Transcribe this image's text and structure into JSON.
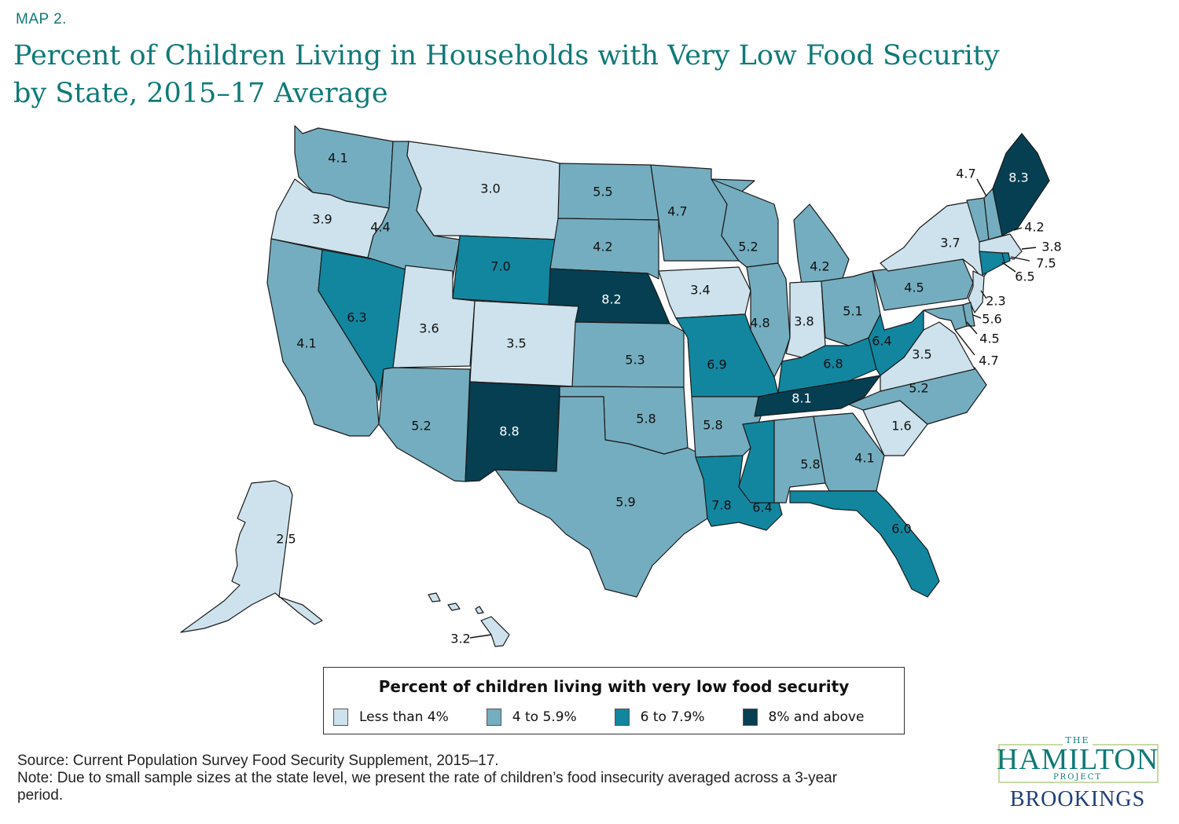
{
  "header": {
    "kicker": "MAP 2.",
    "title": "Percent of Children Living in Households with Very Low Food Security by State, 2015–17 Average"
  },
  "colors": {
    "bin_lt4": "#cde2ec",
    "bin_4_59": "#74adbf",
    "bin_6_79": "#12869f",
    "bin_8plus": "#063f52",
    "title_teal": "#0f7a78"
  },
  "chart_data": {
    "type": "choropleth",
    "title": "Percent of Children Living in Households with Very Low Food Security by State, 2015–17 Average",
    "unit": "percent",
    "legend": {
      "title": "Percent of children living with very low food security",
      "placement": "bottom-center",
      "bins": [
        {
          "label": "Less than 4%",
          "min": null,
          "max": 4.0,
          "color": "#cde2ec"
        },
        {
          "label": "4 to 5.9%",
          "min": 4.0,
          "max": 5.9,
          "color": "#74adbf"
        },
        {
          "label": "6 to 7.9%",
          "min": 6.0,
          "max": 7.9,
          "color": "#12869f"
        },
        {
          "label": "8% and above",
          "min": 8.0,
          "max": null,
          "color": "#063f52"
        }
      ]
    },
    "states": [
      {
        "state": "WA",
        "value": 4.1
      },
      {
        "state": "OR",
        "value": 3.9
      },
      {
        "state": "CA",
        "value": 4.1
      },
      {
        "state": "ID",
        "value": 4.4
      },
      {
        "state": "NV",
        "value": 6.3
      },
      {
        "state": "MT",
        "value": 3.0
      },
      {
        "state": "WY",
        "value": 7.0
      },
      {
        "state": "UT",
        "value": 3.6
      },
      {
        "state": "CO",
        "value": 3.5
      },
      {
        "state": "AZ",
        "value": 5.2
      },
      {
        "state": "NM",
        "value": 8.8
      },
      {
        "state": "ND",
        "value": 5.5
      },
      {
        "state": "SD",
        "value": 4.2
      },
      {
        "state": "NE",
        "value": 8.2
      },
      {
        "state": "KS",
        "value": 5.3
      },
      {
        "state": "OK",
        "value": 5.8
      },
      {
        "state": "TX",
        "value": 5.9
      },
      {
        "state": "MN",
        "value": 4.7
      },
      {
        "state": "IA",
        "value": 3.4
      },
      {
        "state": "MO",
        "value": 6.9
      },
      {
        "state": "AR",
        "value": 5.8
      },
      {
        "state": "LA",
        "value": 7.8
      },
      {
        "state": "WI",
        "value": 5.2
      },
      {
        "state": "IL",
        "value": 4.8
      },
      {
        "state": "MI",
        "value": 4.2
      },
      {
        "state": "IN",
        "value": 3.8
      },
      {
        "state": "OH",
        "value": 5.1
      },
      {
        "state": "KY",
        "value": 6.8
      },
      {
        "state": "TN",
        "value": 8.1
      },
      {
        "state": "MS",
        "value": 6.4
      },
      {
        "state": "AL",
        "value": 5.8
      },
      {
        "state": "GA",
        "value": 4.1
      },
      {
        "state": "FL",
        "value": 6.0
      },
      {
        "state": "SC",
        "value": 1.6
      },
      {
        "state": "NC",
        "value": 5.2
      },
      {
        "state": "VA",
        "value": 3.5
      },
      {
        "state": "WV",
        "value": 6.4
      },
      {
        "state": "PA",
        "value": 4.5
      },
      {
        "state": "NY",
        "value": 3.7
      },
      {
        "state": "VT",
        "value": 4.7
      },
      {
        "state": "NH",
        "value": 4.2
      },
      {
        "state": "ME",
        "value": 8.3
      },
      {
        "state": "MA",
        "value": 3.8
      },
      {
        "state": "RI",
        "value": 7.5
      },
      {
        "state": "CT",
        "value": 6.5
      },
      {
        "state": "NJ",
        "value": 2.3
      },
      {
        "state": "DE",
        "value": 5.6
      },
      {
        "state": "MD",
        "value": 4.5
      },
      {
        "state": "DC",
        "value": 4.7
      },
      {
        "state": "AK",
        "value": 2.5
      },
      {
        "state": "HI",
        "value": 3.2
      }
    ]
  },
  "footer": {
    "source": "Source: Current Population Survey Food Security Supplement, 2015–17.",
    "note": "Note: Due to small sample sizes at the state level, we present the rate of children’s food insecurity averaged across a 3-year period."
  },
  "logo": {
    "the": "THE",
    "hamilton": "HAMILTON",
    "project": "PROJECT",
    "brookings": "BROOKINGS"
  }
}
